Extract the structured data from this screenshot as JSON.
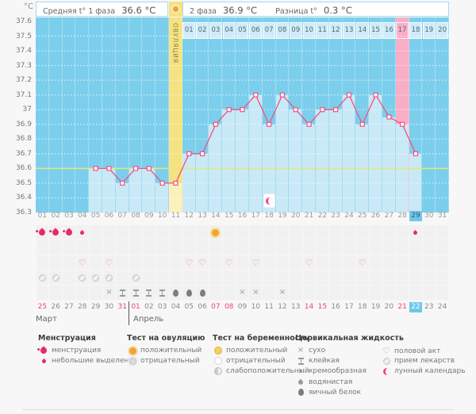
{
  "header": {
    "units": "°C",
    "phase1_label": "Средняя t° 1 фаза",
    "phase1_value": "36.6 °C",
    "phase2_label": "2 фаза",
    "phase2_value": "36.9 °C",
    "diff_label": "Разница t°",
    "diff_value": "0.3 °C"
  },
  "ovulation": {
    "label": "ОВУЛЯЦИЯ",
    "day": 11
  },
  "chart_data": {
    "type": "line",
    "ylabel": "°C",
    "ylim": [
      36.3,
      37.6
    ],
    "ytick_step": 0.1,
    "yticks": [
      "37.6",
      "37.5",
      "37.4",
      "37.3",
      "37.2",
      "37.1",
      "37",
      "36.9",
      "36.8",
      "36.7",
      "36.6",
      "36.5",
      "36.4",
      "36.3"
    ],
    "x_days": [
      "01",
      "02",
      "03",
      "04",
      "05",
      "06",
      "07",
      "08",
      "09",
      "10",
      "11",
      "12",
      "13",
      "14",
      "15",
      "16",
      "17",
      "18",
      "19",
      "20",
      "21",
      "22",
      "23",
      "24",
      "25",
      "26",
      "27",
      "28",
      "29",
      "30",
      "31"
    ],
    "values": [
      null,
      null,
      null,
      null,
      36.6,
      36.6,
      36.5,
      36.6,
      36.6,
      36.5,
      36.5,
      36.7,
      36.7,
      36.9,
      37,
      37,
      37.1,
      36.9,
      37.1,
      37,
      36.9,
      37,
      37,
      37.1,
      36.9,
      37.1,
      36.95,
      36.9,
      36.7,
      null,
      null
    ],
    "coverline": 36.6,
    "ovulation_day": 11,
    "highlight_pink_day": 28,
    "today_day": 29,
    "dpo_start_day": 12,
    "dpo_labels": [
      "01",
      "02",
      "03",
      "04",
      "05",
      "06",
      "07",
      "08",
      "09",
      "10",
      "11",
      "12",
      "13",
      "14",
      "15",
      "16",
      "17",
      "18",
      "19",
      "20"
    ],
    "dpo_pink_label": "17",
    "moon_day": 18,
    "grid": true,
    "legend_position": "bottom"
  },
  "rows": {
    "menstruation": [
      {
        "day": 1,
        "icon": "drop-big"
      },
      {
        "day": 2,
        "icon": "drop-big"
      },
      {
        "day": 3,
        "icon": "drop-big"
      },
      {
        "day": 4,
        "icon": "drop-small"
      },
      {
        "day": 14,
        "icon": "sun"
      },
      {
        "day": 29,
        "icon": "drop-small"
      }
    ],
    "pregnancy_test": [],
    "intercourse": [
      {
        "day": 4,
        "icon": "heart"
      },
      {
        "day": 6,
        "icon": "heart"
      },
      {
        "day": 12,
        "icon": "heart"
      },
      {
        "day": 13,
        "icon": "heart"
      },
      {
        "day": 15,
        "icon": "heart"
      },
      {
        "day": 17,
        "icon": "heart"
      },
      {
        "day": 21,
        "icon": "heart"
      },
      {
        "day": 25,
        "icon": "heart"
      }
    ],
    "medication": [
      {
        "day": 1,
        "icon": "pill"
      },
      {
        "day": 2,
        "icon": "pill"
      },
      {
        "day": 4,
        "icon": "pill"
      },
      {
        "day": 5,
        "icon": "pill"
      },
      {
        "day": 6,
        "icon": "pill"
      },
      {
        "day": 8,
        "icon": "pill"
      }
    ],
    "cervical": [
      {
        "day": 6,
        "icon": "dry"
      },
      {
        "day": 7,
        "icon": "sticky"
      },
      {
        "day": 8,
        "icon": "sticky"
      },
      {
        "day": 9,
        "icon": "sticky"
      },
      {
        "day": 10,
        "icon": "sticky"
      },
      {
        "day": 11,
        "icon": "eggwhite"
      },
      {
        "day": 12,
        "icon": "eggwhite"
      },
      {
        "day": 13,
        "icon": "eggwhite"
      },
      {
        "day": 16,
        "icon": "dry"
      },
      {
        "day": 17,
        "icon": "dry"
      },
      {
        "day": 19,
        "icon": "dry"
      }
    ]
  },
  "calendar": {
    "dates": [
      "25",
      "26",
      "27",
      "28",
      "29",
      "30",
      "31",
      "01",
      "02",
      "03",
      "04",
      "05",
      "06",
      "07",
      "08",
      "09",
      "10",
      "11",
      "12",
      "13",
      "14",
      "15",
      "16",
      "17",
      "18",
      "19",
      "20",
      "21",
      "22",
      "23",
      "24"
    ],
    "red_indices": [
      0,
      6,
      7,
      13,
      14,
      20,
      21,
      27
    ],
    "today_index": 28,
    "month1": "Март",
    "month2": "Апрель"
  },
  "legend": {
    "columns": [
      {
        "title": "Менструация",
        "items": [
          {
            "icon": "drop-big",
            "label": "менструация"
          },
          {
            "icon": "drop-small",
            "label": "небольшие выделения"
          }
        ]
      },
      {
        "title": "Тест на овуляцию",
        "items": [
          {
            "icon": "ovu-pos",
            "label": "положительный"
          },
          {
            "icon": "ovu-neg",
            "label": "отрицательный"
          }
        ]
      },
      {
        "title": "Тест на беременность",
        "items": [
          {
            "icon": "preg-pos",
            "label": "положительный"
          },
          {
            "icon": "preg-neg",
            "label": "отрицательный"
          },
          {
            "icon": "preg-weak",
            "label": "слабоположительный"
          }
        ]
      },
      {
        "title": "Цервикальная жидкость",
        "items": [
          {
            "icon": "dry",
            "label": "сухо"
          },
          {
            "icon": "sticky",
            "label": "клейкая"
          },
          {
            "icon": "creamy",
            "label": "кремообразная"
          },
          {
            "icon": "watery",
            "label": "водянистая"
          },
          {
            "icon": "eggwhite",
            "label": "яичный белок"
          }
        ]
      },
      {
        "title": "",
        "items": [
          {
            "icon": "heart",
            "label": "половой акт"
          },
          {
            "icon": "pill",
            "label": "прием лекарств"
          },
          {
            "icon": "moon",
            "label": "лунный календарь"
          }
        ]
      }
    ]
  },
  "colors": {
    "background_blue": "#7ccfec",
    "bar_blue": "#c9e9f7",
    "dpo_cell": "#cfeaf8",
    "ovulation_yellow": "#f5e282",
    "ovulation_bar": "#faf1bd",
    "pink_band": "#f8aec6",
    "line_pink": "#ee5287",
    "coverline_yellow": "#e9e47a",
    "today_blue": "#6fc7ea",
    "weekend_red": "#f0417c"
  }
}
